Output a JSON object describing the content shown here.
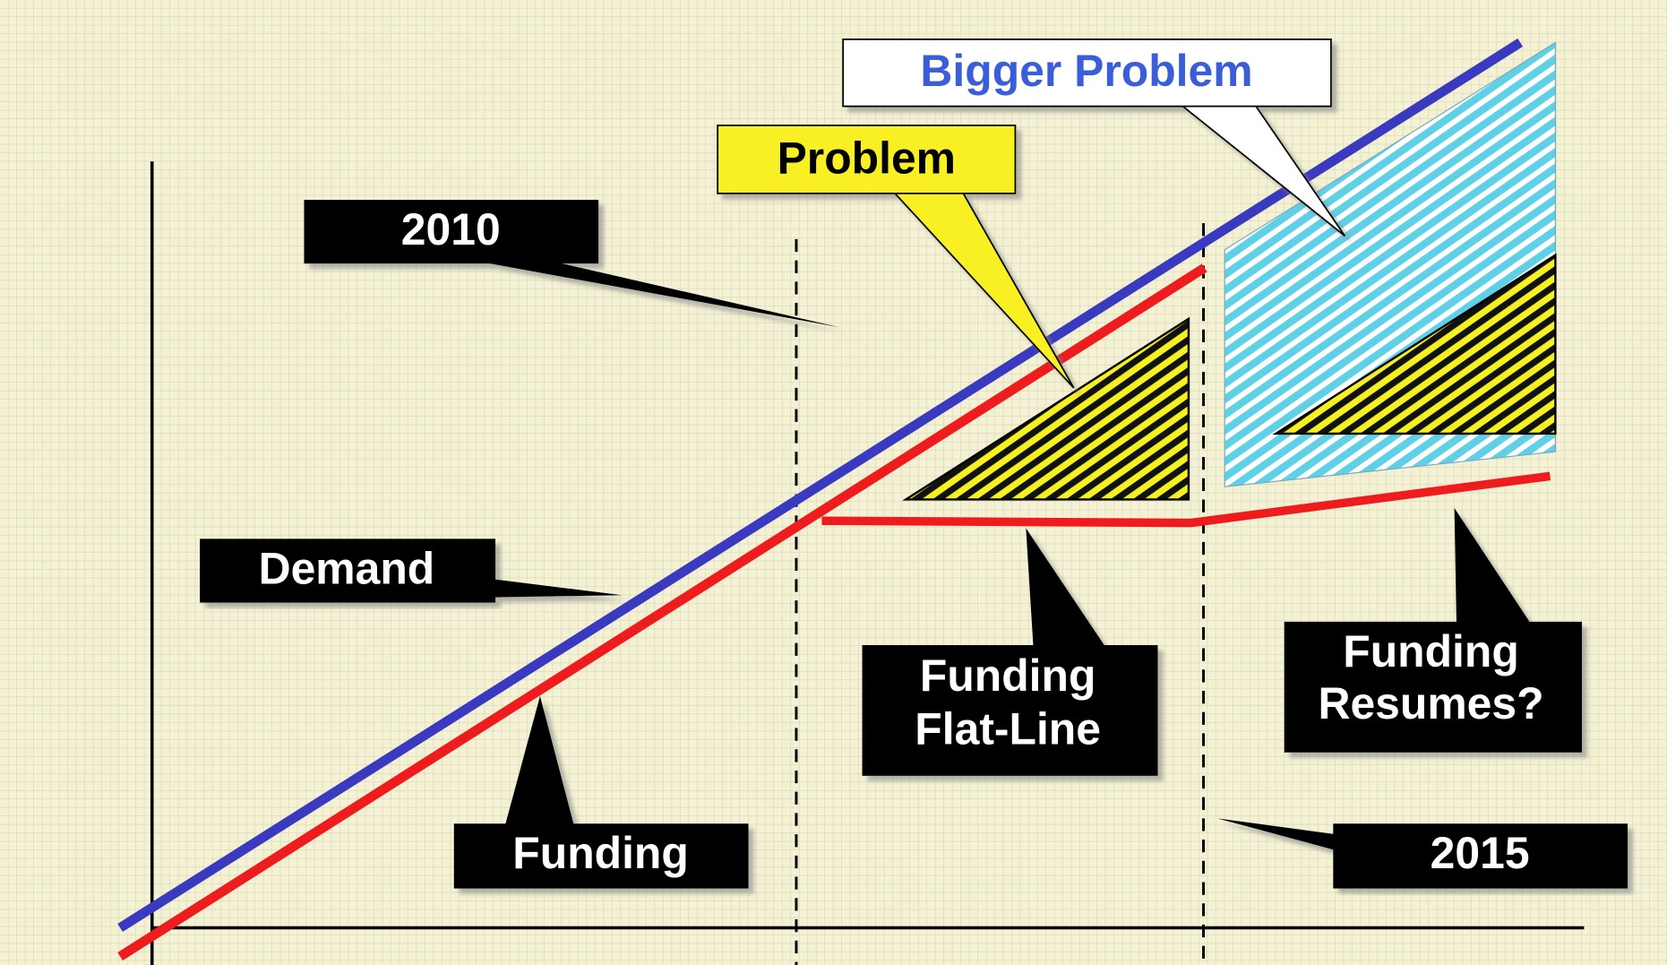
{
  "callouts": [
    {
      "lines": [
        "Bigger Problem"
      ]
    },
    {
      "lines": [
        "Problem"
      ]
    },
    {
      "lines": [
        "2010"
      ]
    },
    {
      "lines": [
        "Demand"
      ]
    },
    {
      "lines": [
        "Funding"
      ]
    },
    {
      "lines": [
        "Funding",
        "Flat-Line"
      ]
    },
    {
      "lines": [
        "Funding",
        "Resumes?"
      ]
    },
    {
      "lines": [
        "2015"
      ]
    }
  ]
}
